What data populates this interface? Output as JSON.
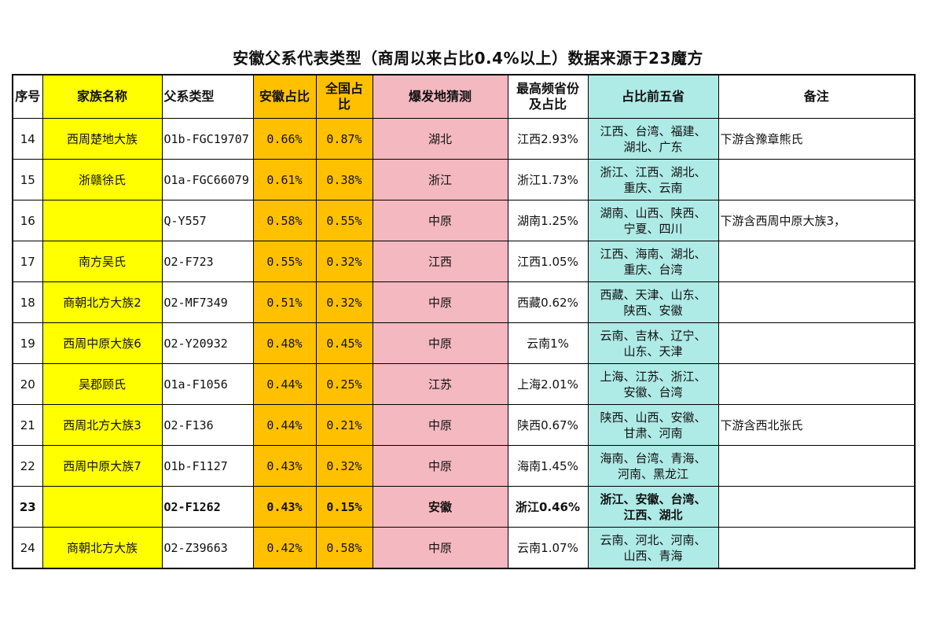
{
  "title": "安徽父系代表类型（商周以来占比0.4%以上）数据来源于23魔方",
  "headers": {
    "seq": "序号",
    "family": "家族名称",
    "haplogroup": "父系类型",
    "anhui_pct": "安徽占比",
    "national_pct": "全国占比",
    "origin": "爆发地猜测",
    "top_province": "最高频省份及占比",
    "top5": "占比前五省",
    "notes": "备注"
  },
  "rows": [
    {
      "seq": "14",
      "family": "西周楚地大族",
      "haplogroup": "O1b-FGC19707",
      "anhui_pct": "0.66%",
      "national_pct": "0.87%",
      "origin": "湖北",
      "top_province": "江西2.93%",
      "top5_line1": "江西、台湾、福建、",
      "top5_line2": "湖北、广东",
      "notes": "下游含豫章熊氏"
    },
    {
      "seq": "15",
      "family": "浙赣徐氏",
      "haplogroup": "O1a-FGC66079",
      "anhui_pct": "0.61%",
      "national_pct": "0.38%",
      "origin": "浙江",
      "top_province": "浙江1.73%",
      "top5_line1": "浙江、江西、湖北、",
      "top5_line2": "重庆、云南",
      "notes": ""
    },
    {
      "seq": "16",
      "family": "",
      "haplogroup": "Q-Y557",
      "anhui_pct": "0.58%",
      "national_pct": "0.55%",
      "origin": "中原",
      "top_province": "湖南1.25%",
      "top5_line1": "湖南、山西、陕西、",
      "top5_line2": "宁夏、四川",
      "notes": "下游含西周中原大族3，"
    },
    {
      "seq": "17",
      "family": "南方吴氏",
      "haplogroup": "O2-F723",
      "anhui_pct": "0.55%",
      "national_pct": "0.32%",
      "origin": "江西",
      "top_province": "江西1.05%",
      "top5_line1": "江西、海南、湖北、",
      "top5_line2": "重庆、台湾",
      "notes": ""
    },
    {
      "seq": "18",
      "family": "商朝北方大族2",
      "haplogroup": "O2-MF7349",
      "anhui_pct": "0.51%",
      "national_pct": "0.32%",
      "origin": "中原",
      "top_province": "西藏0.62%",
      "top5_line1": "西藏、天津、山东、",
      "top5_line2": "陕西、安徽",
      "notes": ""
    },
    {
      "seq": "19",
      "family": "西周中原大族6",
      "haplogroup": "O2-Y20932",
      "anhui_pct": "0.48%",
      "national_pct": "0.45%",
      "origin": "中原",
      "top_province": "云南1%",
      "top5_line1": "云南、吉林、辽宁、",
      "top5_line2": "山东、天津",
      "notes": ""
    },
    {
      "seq": "20",
      "family": "吴郡顾氏",
      "haplogroup": "O1a-F1056",
      "anhui_pct": "0.44%",
      "national_pct": "0.25%",
      "origin": "江苏",
      "top_province": "上海2.01%",
      "top5_line1": "上海、江苏、浙江、",
      "top5_line2": "安徽、台湾",
      "notes": ""
    },
    {
      "seq": "21",
      "family": "西周北方大族3",
      "haplogroup": "O2-F136",
      "anhui_pct": "0.44%",
      "national_pct": "0.21%",
      "origin": "中原",
      "top_province": "陕西0.67%",
      "top5_line1": "陕西、山西、安徽、",
      "top5_line2": "甘肃、河南",
      "notes": "下游含西北张氏"
    },
    {
      "seq": "22",
      "family": "西周中原大族7",
      "haplogroup": "O1b-F1127",
      "anhui_pct": "0.43%",
      "national_pct": "0.32%",
      "origin": "中原",
      "top_province": "海南1.45%",
      "top5_line1": "海南、台湾、青海、",
      "top5_line2": "河南、黑龙江",
      "notes": ""
    },
    {
      "seq": "23",
      "family": "",
      "haplogroup": "O2-F1262",
      "anhui_pct": "0.43%",
      "national_pct": "0.15%",
      "origin": "安徽",
      "top_province": "浙江0.46%",
      "top5_line1": "浙江、安徽、台湾、",
      "top5_line2": "江西、湖北",
      "notes": "",
      "bold": true
    },
    {
      "seq": "24",
      "family": "商朝北方大族",
      "haplogroup": "O2-Z39663",
      "anhui_pct": "0.42%",
      "national_pct": "0.58%",
      "origin": "中原",
      "top_province": "云南1.07%",
      "top5_line1": "云南、河北、河南、",
      "top5_line2": "山西、青海",
      "notes": ""
    }
  ],
  "colors": {
    "family_column": "#ffff00",
    "percent_columns": "#ffc000",
    "origin_column": "#f4b8c0",
    "top5_column": "#aeeae6"
  }
}
